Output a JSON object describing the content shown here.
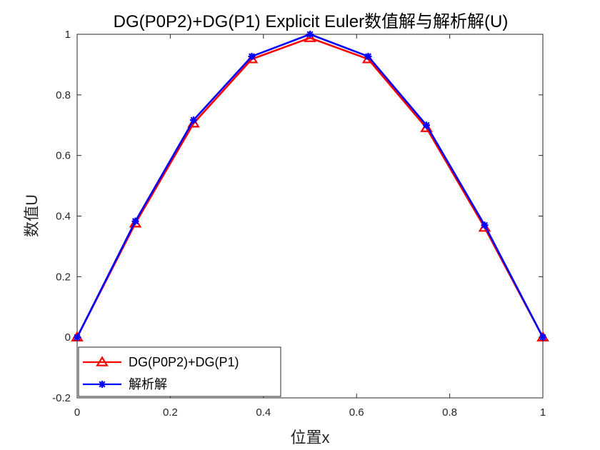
{
  "chart_data": {
    "type": "line",
    "title": "DG(P0P2)+DG(P1) Explicit Euler数值解与解析解(U)",
    "xlabel": "位置x",
    "ylabel": "数值U",
    "xlim": [
      0,
      1
    ],
    "ylim": [
      -0.2,
      1
    ],
    "xticks": [
      0,
      0.2,
      0.4,
      0.6,
      0.8,
      1
    ],
    "xtick_labels": [
      "0",
      "0.2",
      "0.4",
      "0.6",
      "0.8",
      "1"
    ],
    "yticks": [
      -0.2,
      0,
      0.2,
      0.4,
      0.6,
      0.8,
      1
    ],
    "ytick_labels": [
      "-0.2",
      "0",
      "0.2",
      "0.4",
      "0.6",
      "0.8",
      "1"
    ],
    "grid": false,
    "legend_location": "bottom-left",
    "x": [
      0,
      0.125,
      0.25,
      0.375,
      0.5,
      0.625,
      0.75,
      0.875,
      1
    ],
    "series": [
      {
        "name": "DG(P0P2)+DG(P1)",
        "values": [
          0.0,
          0.376,
          0.706,
          0.918,
          0.988,
          0.918,
          0.691,
          0.362,
          0.0
        ],
        "color": "#ff0000",
        "marker": "triangle"
      },
      {
        "name": "解析解",
        "values": [
          0.0,
          0.383,
          0.717,
          0.927,
          1.0,
          0.927,
          0.7,
          0.37,
          0.0
        ],
        "color": "#0000ff",
        "marker": "asterisk"
      }
    ]
  }
}
